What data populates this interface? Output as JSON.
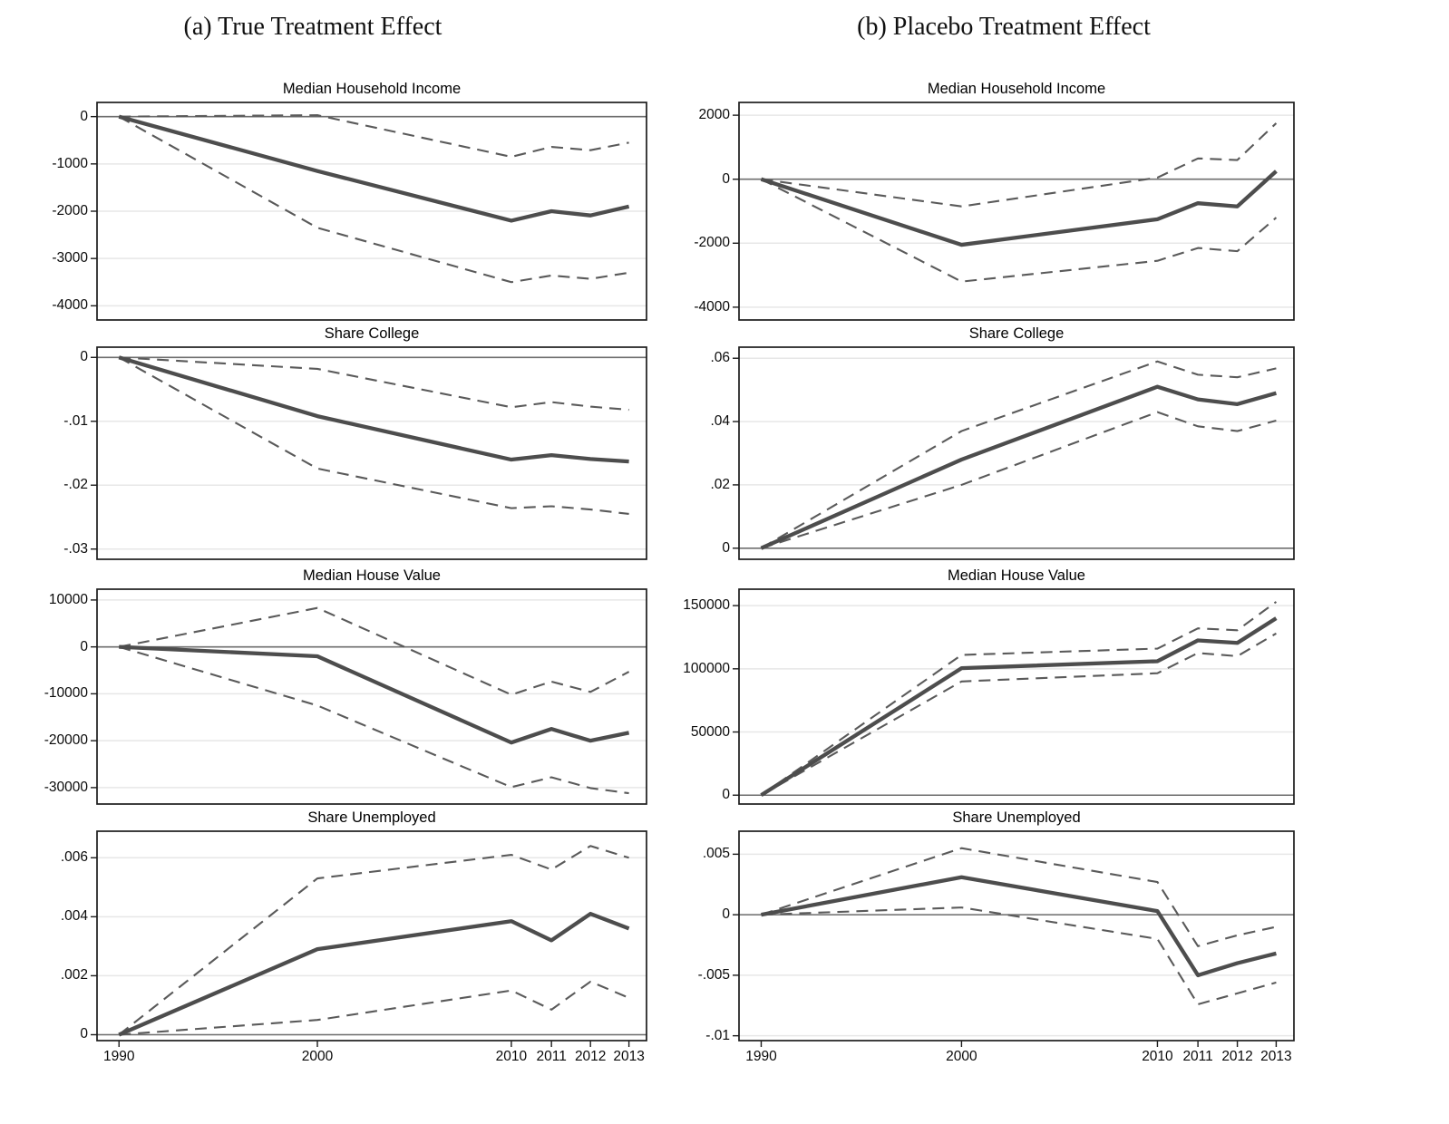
{
  "figure": {
    "caption_a": "(a) True Treatment Effect",
    "caption_b": "(b) Placebo Treatment Effect",
    "background": "#ffffff"
  },
  "colors": {
    "estimate_line": "#4d4d4d",
    "ci_line": "#5a5a5a",
    "gridline": "#e7e7e7",
    "zero_line": "#6e6e6e",
    "frame": "#1c1c1c",
    "text": "#000000"
  },
  "x_tick_labels": [
    "1990",
    "2000",
    "2010",
    "2011",
    "2012",
    "2013"
  ],
  "chart_data": [
    {
      "type": "line",
      "column": "a",
      "row": 0,
      "title": "Median Household Income",
      "x": [
        1990,
        2000,
        2010,
        2011,
        2012,
        2013
      ],
      "ylim": [
        -4300,
        300
      ],
      "yticks": [
        {
          "v": 0,
          "label": "0"
        },
        {
          "v": -1000,
          "label": "-1000"
        },
        {
          "v": -2000,
          "label": "-2000"
        },
        {
          "v": -3000,
          "label": "-3000"
        },
        {
          "v": -4000,
          "label": "-4000"
        }
      ],
      "series": [
        {
          "name": "estimate",
          "style": "solid",
          "values": [
            0,
            -1150,
            -2200,
            -2000,
            -2090,
            -1900
          ]
        },
        {
          "name": "ci_upper",
          "style": "dashed",
          "values": [
            0,
            30,
            -850,
            -640,
            -710,
            -550
          ]
        },
        {
          "name": "ci_lower",
          "style": "dashed",
          "values": [
            0,
            -2350,
            -3500,
            -3360,
            -3430,
            -3300
          ]
        }
      ]
    },
    {
      "type": "line",
      "column": "a",
      "row": 1,
      "title": "Share College",
      "x": [
        1990,
        2000,
        2010,
        2011,
        2012,
        2013
      ],
      "ylim": [
        -0.0316,
        0.0016
      ],
      "yticks": [
        {
          "v": 0,
          "label": "0"
        },
        {
          "v": -0.01,
          "label": "-.01"
        },
        {
          "v": -0.02,
          "label": "-.02"
        },
        {
          "v": -0.03,
          "label": "-.03"
        }
      ],
      "series": [
        {
          "name": "estimate",
          "style": "solid",
          "values": [
            0,
            -0.0092,
            -0.016,
            -0.0153,
            -0.0159,
            -0.0163
          ]
        },
        {
          "name": "ci_upper",
          "style": "dashed",
          "values": [
            0,
            -0.0018,
            -0.0078,
            -0.007,
            -0.0077,
            -0.0082
          ]
        },
        {
          "name": "ci_lower",
          "style": "dashed",
          "values": [
            0,
            -0.0174,
            -0.0236,
            -0.0233,
            -0.0238,
            -0.0245
          ]
        }
      ]
    },
    {
      "type": "line",
      "column": "a",
      "row": 2,
      "title": "Median House Value",
      "x": [
        1990,
        2000,
        2010,
        2011,
        2012,
        2013
      ],
      "ylim": [
        -33500,
        12300
      ],
      "yticks": [
        {
          "v": 10000,
          "label": "10000"
        },
        {
          "v": 0,
          "label": "0"
        },
        {
          "v": -10000,
          "label": "-10000"
        },
        {
          "v": -20000,
          "label": "-20000"
        },
        {
          "v": -30000,
          "label": "-30000"
        }
      ],
      "series": [
        {
          "name": "estimate",
          "style": "solid",
          "values": [
            0,
            -2000,
            -20400,
            -17500,
            -20000,
            -18300
          ]
        },
        {
          "name": "ci_upper",
          "style": "dashed",
          "values": [
            0,
            8300,
            -10200,
            -7400,
            -9600,
            -5300
          ]
        },
        {
          "name": "ci_lower",
          "style": "dashed",
          "values": [
            0,
            -12500,
            -29900,
            -27800,
            -30100,
            -31200
          ]
        }
      ]
    },
    {
      "type": "line",
      "column": "a",
      "row": 3,
      "title": "Share Unemployed",
      "x": [
        1990,
        2000,
        2010,
        2011,
        2012,
        2013
      ],
      "ylim": [
        -0.0002,
        0.0069
      ],
      "yticks": [
        {
          "v": 0.006,
          "label": ".006"
        },
        {
          "v": 0.004,
          "label": ".004"
        },
        {
          "v": 0.002,
          "label": ".002"
        },
        {
          "v": 0,
          "label": "0"
        }
      ],
      "series": [
        {
          "name": "estimate",
          "style": "solid",
          "values": [
            0,
            0.0029,
            0.00385,
            0.0032,
            0.0041,
            0.0036
          ]
        },
        {
          "name": "ci_upper",
          "style": "dashed",
          "values": [
            0,
            0.0053,
            0.0061,
            0.0056,
            0.0064,
            0.006
          ]
        },
        {
          "name": "ci_lower",
          "style": "dashed",
          "values": [
            0,
            0.0005,
            0.0015,
            0.00085,
            0.0018,
            0.00125
          ]
        }
      ]
    },
    {
      "type": "line",
      "column": "b",
      "row": 0,
      "title": "Median Household Income",
      "x": [
        1990,
        2000,
        2010,
        2011,
        2012,
        2013
      ],
      "ylim": [
        -4400,
        2400
      ],
      "yticks": [
        {
          "v": 2000,
          "label": "2000"
        },
        {
          "v": 0,
          "label": "0"
        },
        {
          "v": -2000,
          "label": "-2000"
        },
        {
          "v": -4000,
          "label": "-4000"
        }
      ],
      "series": [
        {
          "name": "estimate",
          "style": "solid",
          "values": [
            0,
            -2050,
            -1250,
            -750,
            -850,
            250
          ]
        },
        {
          "name": "ci_upper",
          "style": "dashed",
          "values": [
            0,
            -850,
            50,
            650,
            600,
            1750
          ]
        },
        {
          "name": "ci_lower",
          "style": "dashed",
          "values": [
            0,
            -3200,
            -2550,
            -2150,
            -2250,
            -1200
          ]
        }
      ]
    },
    {
      "type": "line",
      "column": "b",
      "row": 1,
      "title": "Share College",
      "x": [
        1990,
        2000,
        2010,
        2011,
        2012,
        2013
      ],
      "ylim": [
        -0.0035,
        0.0635
      ],
      "yticks": [
        {
          "v": 0.06,
          "label": ".06"
        },
        {
          "v": 0.04,
          "label": ".04"
        },
        {
          "v": 0.02,
          "label": ".02"
        },
        {
          "v": 0,
          "label": "0"
        }
      ],
      "series": [
        {
          "name": "estimate",
          "style": "solid",
          "values": [
            0,
            0.028,
            0.051,
            0.047,
            0.0455,
            0.049
          ]
        },
        {
          "name": "ci_upper",
          "style": "dashed",
          "values": [
            0,
            0.037,
            0.059,
            0.0548,
            0.054,
            0.0568
          ]
        },
        {
          "name": "ci_lower",
          "style": "dashed",
          "values": [
            0,
            0.02,
            0.043,
            0.0385,
            0.037,
            0.0403
          ]
        }
      ]
    },
    {
      "type": "line",
      "column": "b",
      "row": 2,
      "title": "Median House Value",
      "x": [
        1990,
        2000,
        2010,
        2011,
        2012,
        2013
      ],
      "ylim": [
        -7000,
        163000
      ],
      "yticks": [
        {
          "v": 150000,
          "label": "150000"
        },
        {
          "v": 100000,
          "label": "100000"
        },
        {
          "v": 50000,
          "label": "50000"
        },
        {
          "v": 0,
          "label": "0"
        }
      ],
      "series": [
        {
          "name": "estimate",
          "style": "solid",
          "values": [
            0,
            100500,
            106000,
            122500,
            120500,
            140000
          ]
        },
        {
          "name": "ci_upper",
          "style": "dashed",
          "values": [
            0,
            111000,
            116000,
            132000,
            130500,
            153000
          ]
        },
        {
          "name": "ci_lower",
          "style": "dashed",
          "values": [
            0,
            90000,
            96500,
            112500,
            110000,
            128000
          ]
        }
      ]
    },
    {
      "type": "line",
      "column": "b",
      "row": 3,
      "title": "Share Unemployed",
      "x": [
        1990,
        2000,
        2010,
        2011,
        2012,
        2013
      ],
      "ylim": [
        -0.0104,
        0.0069
      ],
      "yticks": [
        {
          "v": 0.005,
          "label": ".005"
        },
        {
          "v": 0,
          "label": "0"
        },
        {
          "v": -0.005,
          "label": "-.005"
        },
        {
          "v": -0.01,
          "label": "-.01"
        }
      ],
      "series": [
        {
          "name": "estimate",
          "style": "solid",
          "values": [
            0,
            0.0031,
            0.0003,
            -0.005,
            -0.004,
            -0.0032
          ]
        },
        {
          "name": "ci_upper",
          "style": "dashed",
          "values": [
            0,
            0.0055,
            0.0027,
            -0.0026,
            -0.0017,
            -0.001
          ]
        },
        {
          "name": "ci_lower",
          "style": "dashed",
          "values": [
            0,
            0.0006,
            -0.002,
            -0.0074,
            -0.0065,
            -0.0056
          ]
        }
      ]
    }
  ]
}
